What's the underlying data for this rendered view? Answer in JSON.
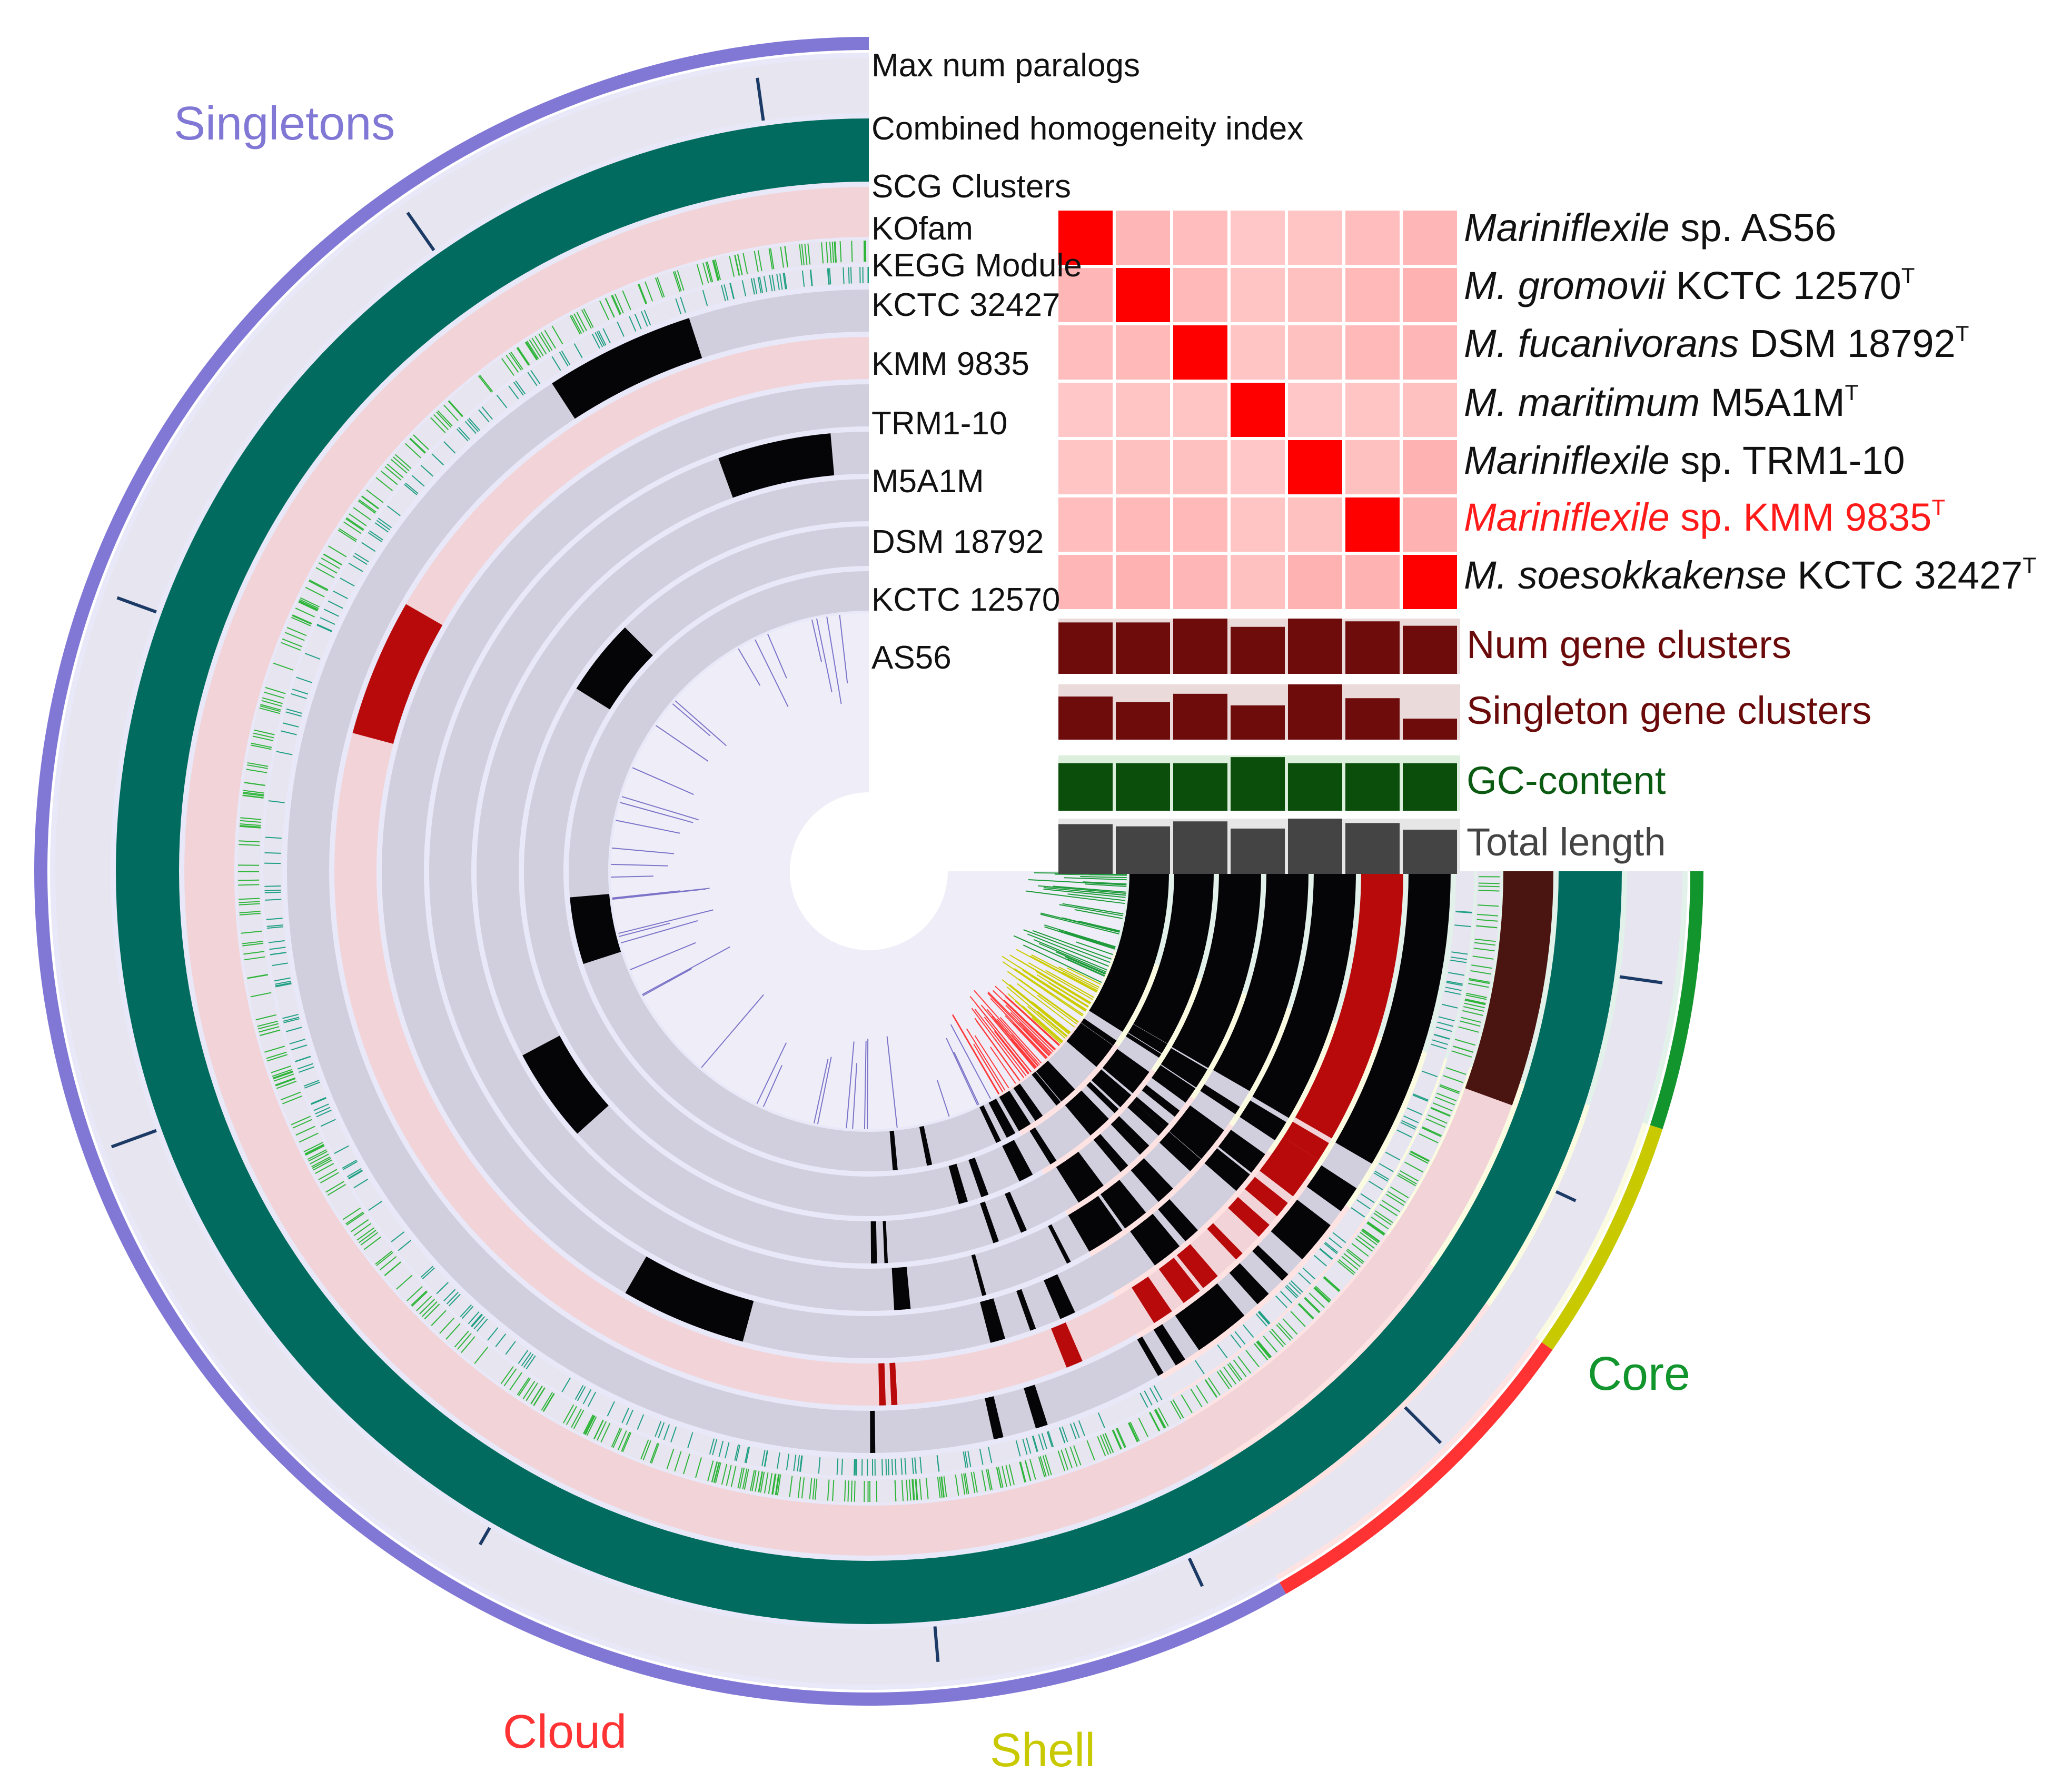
{
  "layer_labels": [
    {
      "text": "Max num paralogs",
      "color": "#111111"
    },
    {
      "text": "Combined homogeneity index",
      "color": "#111111"
    },
    {
      "text": "SCG Clusters",
      "color": "#111111"
    },
    {
      "text": "KOfam",
      "color": "#111111"
    },
    {
      "text": "KEGG Module",
      "color": "#111111"
    },
    {
      "text": "KCTC 32427",
      "color": "#111111"
    },
    {
      "text": "KMM 9835",
      "color": "#ff1a1a"
    },
    {
      "text": "TRM1-10",
      "color": "#111111"
    },
    {
      "text": "M5A1M",
      "color": "#111111"
    },
    {
      "text": "DSM 18792",
      "color": "#111111"
    },
    {
      "text": "KCTC 12570",
      "color": "#111111"
    },
    {
      "text": "AS56",
      "color": "#111111"
    }
  ],
  "species": [
    {
      "italic": "Mariniflexile",
      "rest": " sp. AS56",
      "sup": "",
      "highlight": false
    },
    {
      "italic": "M. gromovii",
      "rest": " KCTC 12570",
      "sup": "T",
      "highlight": false
    },
    {
      "italic": "M. fucanivorans",
      "rest": " DSM 18792",
      "sup": "T",
      "highlight": false
    },
    {
      "italic": "M. maritimum",
      "rest": " M5A1M",
      "sup": "T",
      "highlight": false
    },
    {
      "italic": "Mariniflexile",
      "rest": " sp. TRM1-10",
      "sup": "",
      "highlight": false
    },
    {
      "italic": "Mariniflexile",
      "rest": " sp. KMM 9835",
      "sup": "T",
      "highlight": true
    },
    {
      "italic": "M. soesokkakense",
      "rest": " KCTC 32427",
      "sup": "T",
      "highlight": false
    }
  ],
  "ani_matrix": [
    [
      1.0,
      0.55,
      0.45,
      0.3,
      0.35,
      0.45,
      0.55
    ],
    [
      0.55,
      1.0,
      0.5,
      0.35,
      0.4,
      0.5,
      0.6
    ],
    [
      0.45,
      0.5,
      1.0,
      0.35,
      0.4,
      0.5,
      0.55
    ],
    [
      0.3,
      0.35,
      0.35,
      1.0,
      0.3,
      0.35,
      0.4
    ],
    [
      0.35,
      0.4,
      0.4,
      0.3,
      1.0,
      0.4,
      0.6
    ],
    [
      0.45,
      0.5,
      0.5,
      0.35,
      0.4,
      1.0,
      0.6
    ],
    [
      0.55,
      0.6,
      0.55,
      0.4,
      0.6,
      0.6,
      1.0
    ]
  ],
  "bar_layers": [
    {
      "label": "Num gene clusters",
      "label_color": "#6b0a0a",
      "bar_color": "#6e0c0c",
      "bg_color": "#eadada",
      "values": [
        0.93,
        0.93,
        1.0,
        0.85,
        1.0,
        0.95,
        0.87
      ]
    },
    {
      "label": "Singleton gene clusters",
      "label_color": "#6b0a0a",
      "bar_color": "#6e0c0c",
      "bg_color": "#eadada",
      "values": [
        0.78,
        0.68,
        0.83,
        0.62,
        1.0,
        0.75,
        0.38
      ]
    },
    {
      "label": "GC-content",
      "label_color": "#0b5a12",
      "bar_color": "#0b4d0b",
      "bg_color": "#dcefdc",
      "values": [
        0.86,
        0.86,
        0.86,
        0.97,
        0.86,
        0.86,
        0.86
      ]
    },
    {
      "label": "Total length",
      "label_color": "#444444",
      "bar_color": "#444444",
      "bg_color": "#e6e6e6",
      "values": [
        0.9,
        0.86,
        0.95,
        0.82,
        1.0,
        0.92,
        0.8
      ]
    }
  ],
  "bins": [
    {
      "name": "Singletons",
      "color": "#8178d6"
    },
    {
      "name": "Cloud",
      "color": "#ff3333"
    },
    {
      "name": "Shell",
      "color": "#c9c900"
    },
    {
      "name": "Core",
      "color": "#12952d"
    }
  ],
  "colors": {
    "ring_gray": "#d1cfdd",
    "ring_pink": "#f2d4d8",
    "ring_light": "#e7e5f0",
    "teal": "#006b5e",
    "presence_black": "#050508",
    "presence_red": "#b80a0a",
    "core_brown": "#4a1410",
    "sector_singletons": "#e8e8f8",
    "sector_cloud": "#ffe3e3",
    "sector_shell": "#fbfbe2",
    "sector_core": "#e2f2ea"
  }
}
